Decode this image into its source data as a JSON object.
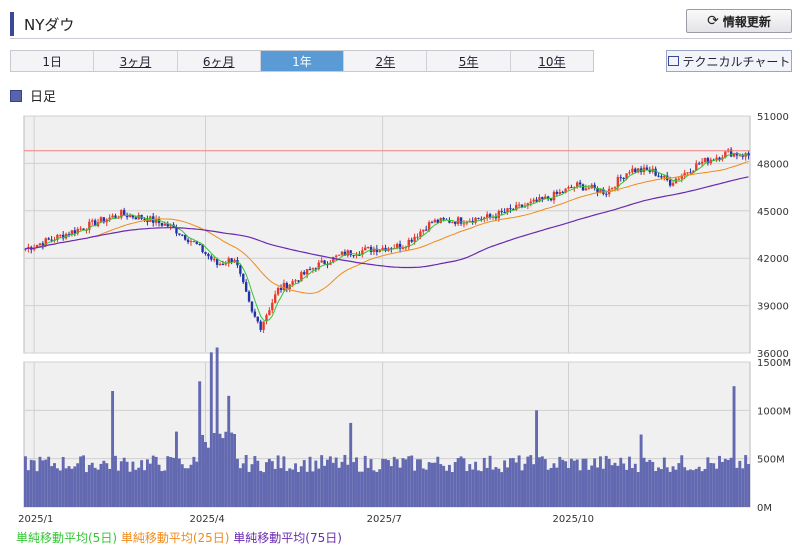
{
  "header": {
    "title": "NYダウ",
    "refresh_label": "情報更新",
    "refresh_icon": "refresh-icon"
  },
  "tabs": [
    {
      "label": "1日",
      "active": false
    },
    {
      "label": "3ヶ月",
      "active": false
    },
    {
      "label": "6ヶ月",
      "active": false
    },
    {
      "label": "1年",
      "active": true
    },
    {
      "label": "2年",
      "active": false
    },
    {
      "label": "5年",
      "active": false
    },
    {
      "label": "10年",
      "active": false
    }
  ],
  "technical_chart_label": "テクニカルチャート",
  "chart_kind_label": "日足",
  "moving_average_legend": [
    "単純移動平均(5日)",
    "単純移動平均(25日)",
    "単純移動平均(75日)"
  ],
  "colors": {
    "up": "#e8392a",
    "down": "#2233aa",
    "ma5": "#34c534",
    "ma25": "#f08a1a",
    "ma75": "#6a2ab0",
    "volume": "#6369b0",
    "hline": "#f08080"
  },
  "chart_data": [
    {
      "type": "candlestick",
      "name": "price",
      "title": "",
      "x_ticks": [
        "2025/1",
        "2025/4",
        "2025/7",
        "2025/10"
      ],
      "y_ticks": [
        36000,
        39000,
        42000,
        45000,
        48000,
        51000
      ],
      "ylim": [
        36000,
        51000
      ],
      "grid": true,
      "reference_line": 48800,
      "close_anchors": [
        [
          "2025/1",
          42600
        ],
        [
          "2025/1 mid",
          43400
        ],
        [
          "2025/1 end",
          44300
        ],
        [
          "2025/2",
          44800
        ],
        [
          "2025/2 mid",
          44500
        ],
        [
          "2025/2 end",
          44000
        ],
        [
          "2025/3",
          43000
        ],
        [
          "2025/3 mid",
          41600
        ],
        [
          "2025/3 end",
          42000
        ],
        [
          "2025/4 early",
          38500
        ],
        [
          "2025/4 low",
          37700
        ],
        [
          "2025/4 mid",
          40000
        ],
        [
          "2025/4 end",
          40500
        ],
        [
          "2025/5",
          41500
        ],
        [
          "2025/5 mid",
          42300
        ],
        [
          "2025/6",
          42600
        ],
        [
          "2025/6 end",
          42800
        ],
        [
          "2025/7",
          44300
        ],
        [
          "2025/7 mid",
          44400
        ],
        [
          "2025/8",
          44600
        ],
        [
          "2025/8 mid",
          45200
        ],
        [
          "2025/9",
          45800
        ],
        [
          "2025/10",
          46600
        ],
        [
          "2025/10 mid",
          46200
        ],
        [
          "2025/10 end",
          47600
        ],
        [
          "2025/11",
          47500
        ],
        [
          "2025/11 mid",
          46800
        ],
        [
          "2025/12",
          48000
        ],
        [
          "2025/12 mid",
          48700
        ],
        [
          "2025/12 end",
          48500
        ]
      ],
      "moving_averages": {
        "ma5": "5日",
        "ma25": "25日",
        "ma75": "75日"
      }
    },
    {
      "type": "bar",
      "name": "volume",
      "y_ticks": [
        "0M",
        "500M",
        "1000M",
        "1500M"
      ],
      "ylim": [
        0,
        1500
      ],
      "grid": true,
      "typical_value_millions": 450,
      "peaks_millions": [
        [
          "2025/1",
          520
        ],
        [
          "2025/2",
          1200
        ],
        [
          "2025/3",
          780
        ],
        [
          "2025/3 end",
          1050
        ],
        [
          "2025/4",
          1350
        ],
        [
          "2025/4",
          1400
        ],
        [
          "2025/5",
          900
        ],
        [
          "2025/6",
          870
        ],
        [
          "2025/9",
          1000
        ],
        [
          "2025/11",
          750
        ],
        [
          "2025/12",
          1250
        ]
      ]
    }
  ]
}
